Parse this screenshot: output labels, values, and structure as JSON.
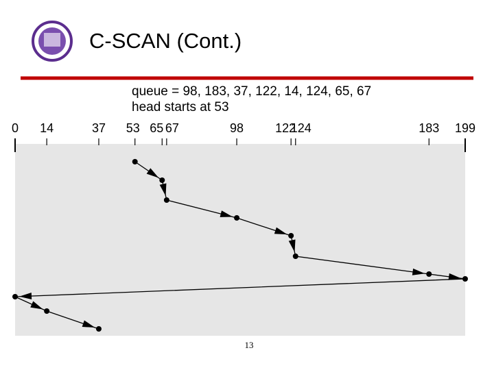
{
  "slide": {
    "title": "C-SCAN (Cont.)",
    "page_number": "13"
  },
  "chart_data": {
    "type": "line",
    "annotations": [
      "queue = 98, 183, 37, 122, 14, 124, 65, 67",
      "head starts at 53"
    ],
    "xlim": [
      0,
      199
    ],
    "xticks": [
      0,
      14,
      37,
      53,
      65,
      67,
      98,
      122,
      124,
      183,
      199
    ],
    "ylim": [
      0,
      280
    ],
    "y_inverted": true,
    "color": "#000000",
    "x": [
      53,
      65,
      67,
      98,
      122,
      124,
      183,
      199,
      0,
      14,
      37
    ],
    "values": [
      26,
      53,
      82,
      108,
      134,
      164,
      190,
      197,
      223,
      244,
      270
    ]
  }
}
